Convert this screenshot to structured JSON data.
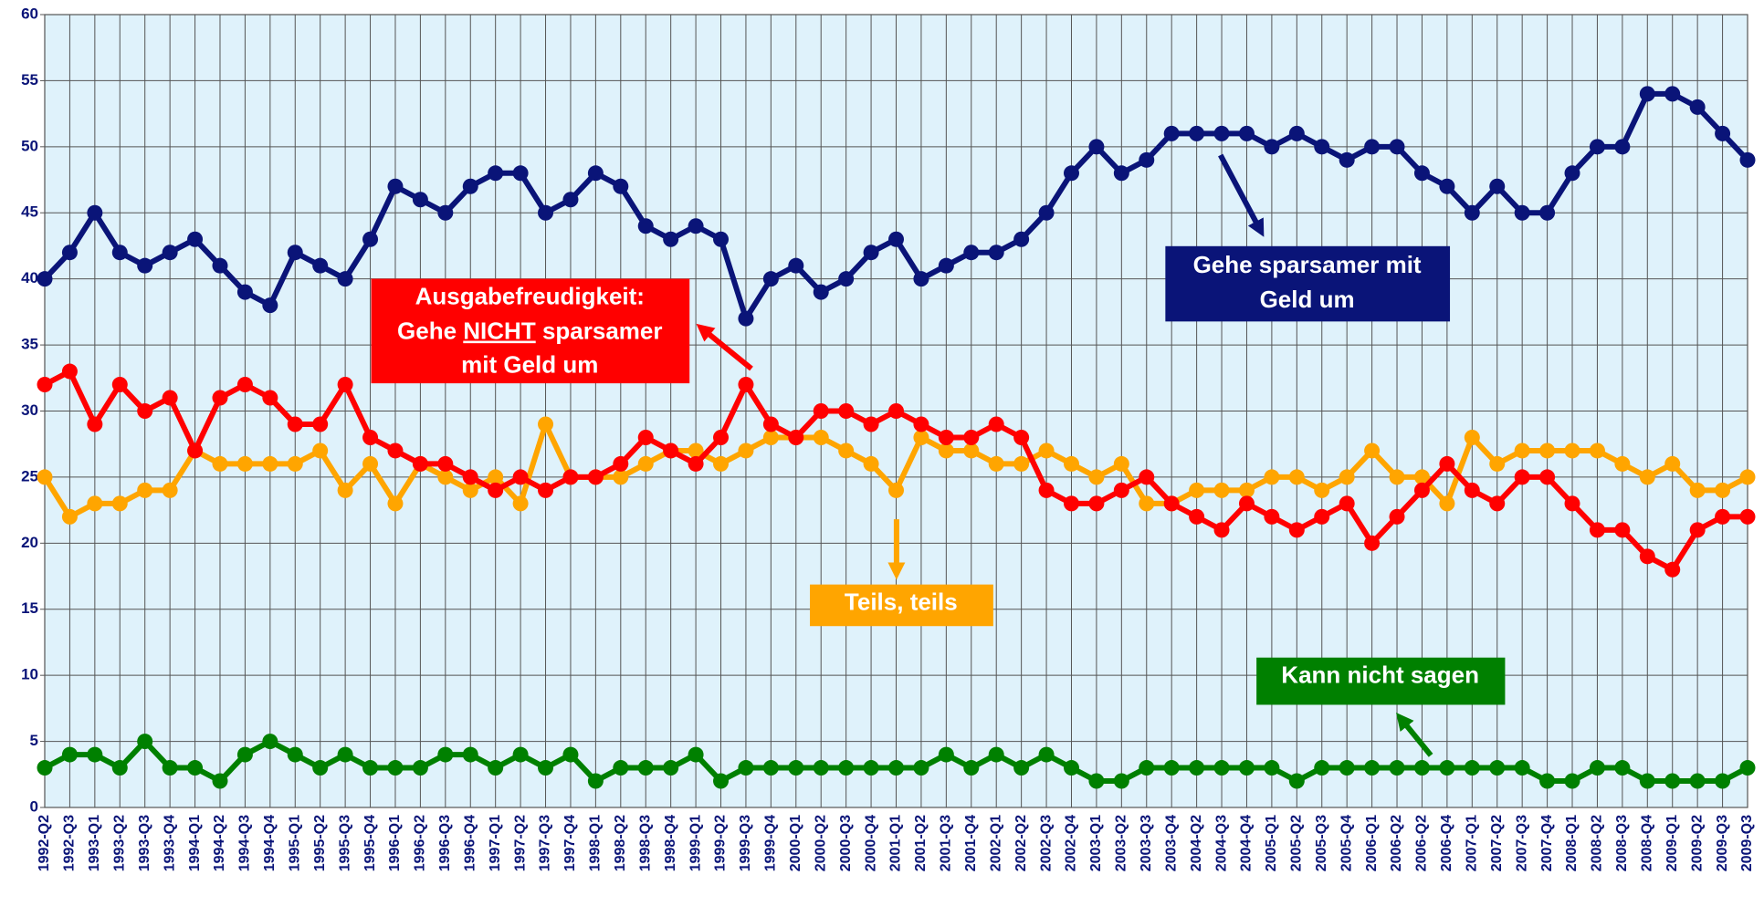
{
  "chart_data": {
    "type": "line",
    "categories": [
      "1992-Q2",
      "1992-Q3",
      "1993-Q1",
      "1993-Q2",
      "1993-Q3",
      "1993-Q4",
      "1994-Q1",
      "1994-Q2",
      "1994-Q3",
      "1994-Q4",
      "1995-Q1",
      "1995-Q2",
      "1995-Q3",
      "1995-Q4",
      "1996-Q1",
      "1996-Q2",
      "1996-Q3",
      "1996-Q4",
      "1997-Q1",
      "1997-Q2",
      "1997-Q3",
      "1997-Q4",
      "1998-Q1",
      "1998-Q2",
      "1998-Q3",
      "1998-Q4",
      "1999-Q1",
      "1999-Q2",
      "1999-Q3",
      "1999-Q4",
      "2000-Q1",
      "2000-Q2",
      "2000-Q3",
      "2000-Q4",
      "2001-Q1",
      "2001-Q2",
      "2001-Q3",
      "2001-Q4",
      "2002-Q1",
      "2002-Q2",
      "2002-Q3",
      "2002-Q4",
      "2003-Q1",
      "2003-Q2",
      "2003-Q3",
      "2003-Q4",
      "2004-Q2",
      "2004-Q3",
      "2004-Q4",
      "2005-Q1",
      "2005-Q2",
      "2005-Q3",
      "2005-Q4",
      "2006-Q1",
      "2006-Q2",
      "2006-Q2",
      "2006-Q4",
      "2007-Q1",
      "2007-Q2",
      "2007-Q3",
      "2007-Q4",
      "2008-Q1",
      "2008-Q2",
      "2008-Q3",
      "2008-Q4",
      "2009-Q1",
      "2009-Q2",
      "2009-Q3",
      "2009-Q3"
    ],
    "series": [
      {
        "color": "#0a1478",
        "values": [
          40,
          42,
          45,
          42,
          41,
          42,
          43,
          41,
          39,
          38,
          42,
          41,
          40,
          43,
          47,
          46,
          45,
          47,
          48,
          48,
          45,
          46,
          48,
          47,
          44,
          43,
          44,
          43,
          37,
          40,
          41,
          39,
          40,
          42,
          43,
          40,
          41,
          42,
          42,
          43,
          45,
          48,
          50,
          48,
          49,
          51,
          51,
          51,
          51,
          50,
          51,
          50,
          49,
          50,
          50,
          48,
          47,
          45,
          47,
          45,
          45,
          48,
          50,
          50,
          54,
          54,
          53,
          51,
          49
        ]
      },
      {
        "color": "#008000",
        "values": [
          3,
          4,
          4,
          3,
          5,
          3,
          3,
          2,
          4,
          5,
          4,
          3,
          4,
          3,
          3,
          3,
          4,
          4,
          3,
          4,
          3,
          4,
          2,
          3,
          3,
          3,
          4,
          2,
          3,
          3,
          3,
          3,
          3,
          3,
          3,
          3,
          4,
          3,
          4,
          3,
          4,
          3,
          2,
          2,
          3,
          3,
          3,
          3,
          3,
          3,
          2,
          3,
          3,
          3,
          3,
          3,
          3,
          3,
          3,
          3,
          2,
          2,
          3,
          3,
          2,
          2,
          2,
          2,
          3
        ]
      },
      {
        "color": "#ffa500",
        "values": [
          25,
          22,
          23,
          23,
          24,
          24,
          27,
          26,
          26,
          26,
          26,
          27,
          24,
          26,
          23,
          26,
          25,
          24,
          25,
          23,
          29,
          25,
          25,
          25,
          26,
          27,
          27,
          26,
          27,
          28,
          28,
          28,
          27,
          26,
          24,
          28,
          27,
          27,
          26,
          26,
          27,
          26,
          25,
          26,
          23,
          23,
          24,
          24,
          24,
          25,
          25,
          24,
          25,
          27,
          25,
          25,
          23,
          28,
          26,
          27,
          27,
          27,
          27,
          26,
          25,
          26,
          24,
          24,
          25
        ]
      },
      {
        "color": "#ff0000",
        "values": [
          32,
          33,
          29,
          32,
          30,
          31,
          27,
          31,
          32,
          31,
          29,
          29,
          32,
          28,
          27,
          26,
          26,
          25,
          24,
          25,
          24,
          25,
          25,
          26,
          28,
          27,
          26,
          28,
          32,
          29,
          28,
          30,
          30,
          29,
          30,
          29,
          28,
          28,
          29,
          28,
          24,
          23,
          23,
          24,
          25,
          23,
          22,
          21,
          23,
          22,
          21,
          22,
          23,
          20,
          22,
          24,
          26,
          24,
          23,
          25,
          25,
          23,
          21,
          21,
          19,
          18,
          21,
          22,
          22
        ]
      }
    ],
    "ylim": [
      0,
      60
    ],
    "yticks": [
      0,
      5,
      10,
      15,
      20,
      25,
      30,
      35,
      40,
      45,
      50,
      55,
      60
    ],
    "grid": true,
    "annotations": [
      {
        "color": "#ff0000",
        "lines": [
          [
            "Ausgabefreudigkeit:"
          ],
          [
            "Gehe ",
            "NICHT",
            " sparsamer"
          ],
          [
            "mit Geld um"
          ]
        ],
        "underline": [
          1,
          1
        ]
      },
      {
        "color": "#0a1478",
        "lines": [
          [
            "Gehe sparsamer mit"
          ],
          [
            "Geld um"
          ]
        ]
      },
      {
        "color": "#ffa500",
        "lines": [
          [
            "Teils, teils"
          ]
        ]
      },
      {
        "color": "#008000",
        "lines": [
          [
            "Kann nicht sagen"
          ]
        ]
      }
    ]
  }
}
